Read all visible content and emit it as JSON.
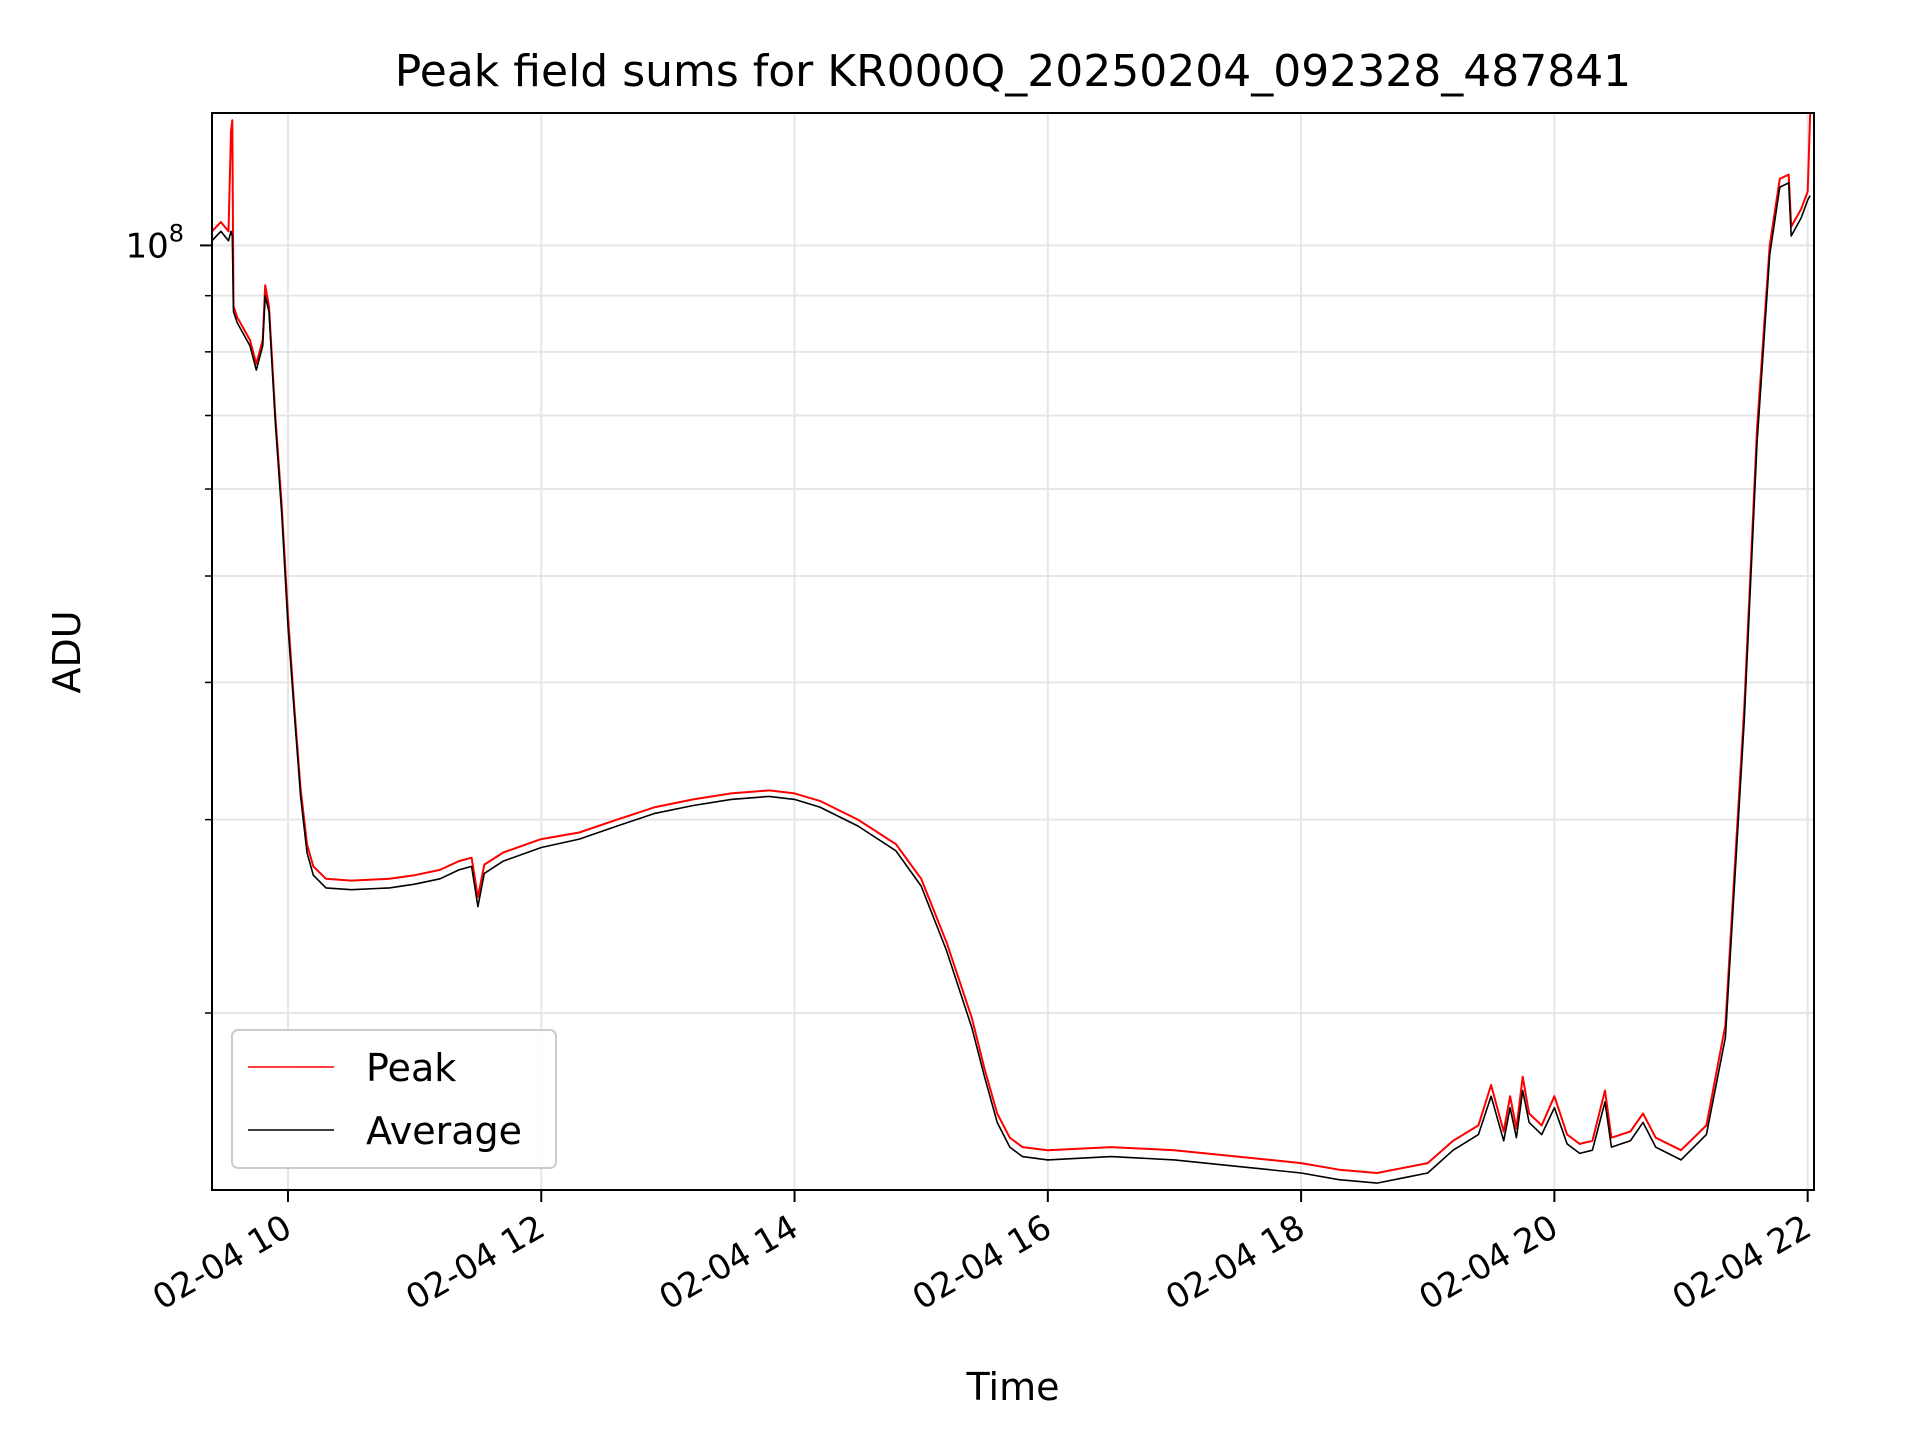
{
  "chart_data": {
    "type": "line",
    "title": "Peak field sums for KR000Q_20250204_092328_487841",
    "xlabel": "Time",
    "ylabel": "ADU",
    "yscale": "log",
    "x_unit": "hours of 2025-02-04",
    "xlim": [
      9.4,
      22.05
    ],
    "ylim": [
      13800000,
      132000000
    ],
    "x_ticks": [
      10,
      12,
      14,
      16,
      18,
      20,
      22
    ],
    "x_tick_labels": [
      "02-04 10",
      "02-04 12",
      "02-04 14",
      "02-04 16",
      "02-04 18",
      "02-04 20",
      "02-04 22"
    ],
    "y_major_ticks": [
      100000000
    ],
    "y_major_tick_base": "10",
    "y_major_tick_exp": "8",
    "y_minor_ticks": [
      20000000,
      30000000,
      40000000,
      50000000,
      60000000,
      70000000,
      80000000,
      90000000
    ],
    "grid": true,
    "legend": "lower-left",
    "series": [
      {
        "name": "Peak",
        "color": "#ff0000",
        "points": [
          [
            9.4,
            103000000
          ],
          [
            9.47,
            105000000
          ],
          [
            9.53,
            103000000
          ],
          [
            9.55,
            127000000
          ],
          [
            9.56,
            130000000
          ],
          [
            9.57,
            88000000
          ],
          [
            9.6,
            86000000
          ],
          [
            9.7,
            82000000
          ],
          [
            9.75,
            78000000
          ],
          [
            9.8,
            82000000
          ],
          [
            9.82,
            92000000
          ],
          [
            9.85,
            88000000
          ],
          [
            9.9,
            70000000
          ],
          [
            9.95,
            58000000
          ],
          [
            10.0,
            46000000
          ],
          [
            10.05,
            38000000
          ],
          [
            10.1,
            32000000
          ],
          [
            10.15,
            28500000
          ],
          [
            10.2,
            27200000
          ],
          [
            10.3,
            26500000
          ],
          [
            10.5,
            26400000
          ],
          [
            10.8,
            26500000
          ],
          [
            11.0,
            26700000
          ],
          [
            11.2,
            27000000
          ],
          [
            11.35,
            27500000
          ],
          [
            11.45,
            27700000
          ],
          [
            11.5,
            25500000
          ],
          [
            11.55,
            27300000
          ],
          [
            11.7,
            28000000
          ],
          [
            12.0,
            28800000
          ],
          [
            12.3,
            29200000
          ],
          [
            12.6,
            30000000
          ],
          [
            12.9,
            30800000
          ],
          [
            13.2,
            31300000
          ],
          [
            13.5,
            31700000
          ],
          [
            13.8,
            31900000
          ],
          [
            14.0,
            31700000
          ],
          [
            14.2,
            31200000
          ],
          [
            14.5,
            30000000
          ],
          [
            14.8,
            28500000
          ],
          [
            15.0,
            26500000
          ],
          [
            15.2,
            23200000
          ],
          [
            15.4,
            19800000
          ],
          [
            15.5,
            17800000
          ],
          [
            15.6,
            16200000
          ],
          [
            15.7,
            15400000
          ],
          [
            15.8,
            15100000
          ],
          [
            16.0,
            15000000
          ],
          [
            16.5,
            15100000
          ],
          [
            17.0,
            15000000
          ],
          [
            17.5,
            14800000
          ],
          [
            18.0,
            14600000
          ],
          [
            18.3,
            14400000
          ],
          [
            18.6,
            14300000
          ],
          [
            19.0,
            14600000
          ],
          [
            19.2,
            15300000
          ],
          [
            19.4,
            15800000
          ],
          [
            19.5,
            17200000
          ],
          [
            19.6,
            15600000
          ],
          [
            19.65,
            16800000
          ],
          [
            19.7,
            15700000
          ],
          [
            19.75,
            17500000
          ],
          [
            19.8,
            16200000
          ],
          [
            19.9,
            15800000
          ],
          [
            20.0,
            16800000
          ],
          [
            20.1,
            15500000
          ],
          [
            20.2,
            15200000
          ],
          [
            20.3,
            15300000
          ],
          [
            20.4,
            17000000
          ],
          [
            20.45,
            15400000
          ],
          [
            20.6,
            15600000
          ],
          [
            20.7,
            16200000
          ],
          [
            20.8,
            15400000
          ],
          [
            21.0,
            15000000
          ],
          [
            21.2,
            15800000
          ],
          [
            21.35,
            19500000
          ],
          [
            21.5,
            38000000
          ],
          [
            21.6,
            68000000
          ],
          [
            21.7,
            100000000
          ],
          [
            21.78,
            115000000
          ],
          [
            21.85,
            116000000
          ],
          [
            21.87,
            104000000
          ],
          [
            21.95,
            108000000
          ],
          [
            22.0,
            112000000
          ],
          [
            22.02,
            132000000
          ]
        ]
      },
      {
        "name": "Average",
        "color": "#000000",
        "points": [
          [
            9.4,
            101000000
          ],
          [
            9.47,
            103000000
          ],
          [
            9.53,
            101000000
          ],
          [
            9.55,
            103000000
          ],
          [
            9.56,
            102000000
          ],
          [
            9.57,
            87000000
          ],
          [
            9.6,
            85000000
          ],
          [
            9.7,
            81000000
          ],
          [
            9.75,
            77000000
          ],
          [
            9.8,
            81000000
          ],
          [
            9.82,
            90000000
          ],
          [
            9.85,
            87000000
          ],
          [
            9.9,
            69000000
          ],
          [
            9.95,
            57000000
          ],
          [
            10.0,
            45000000
          ],
          [
            10.05,
            37500000
          ],
          [
            10.1,
            31500000
          ],
          [
            10.15,
            28000000
          ],
          [
            10.2,
            26700000
          ],
          [
            10.3,
            26000000
          ],
          [
            10.5,
            25900000
          ],
          [
            10.8,
            26000000
          ],
          [
            11.0,
            26200000
          ],
          [
            11.2,
            26500000
          ],
          [
            11.35,
            27000000
          ],
          [
            11.45,
            27200000
          ],
          [
            11.5,
            25000000
          ],
          [
            11.55,
            26800000
          ],
          [
            11.7,
            27500000
          ],
          [
            12.0,
            28300000
          ],
          [
            12.3,
            28800000
          ],
          [
            12.6,
            29600000
          ],
          [
            12.9,
            30400000
          ],
          [
            13.2,
            30900000
          ],
          [
            13.5,
            31300000
          ],
          [
            13.8,
            31500000
          ],
          [
            14.0,
            31300000
          ],
          [
            14.2,
            30800000
          ],
          [
            14.5,
            29600000
          ],
          [
            14.8,
            28100000
          ],
          [
            15.0,
            26100000
          ],
          [
            15.2,
            22800000
          ],
          [
            15.4,
            19400000
          ],
          [
            15.5,
            17500000
          ],
          [
            15.6,
            15900000
          ],
          [
            15.7,
            15100000
          ],
          [
            15.8,
            14800000
          ],
          [
            16.0,
            14700000
          ],
          [
            16.5,
            14800000
          ],
          [
            17.0,
            14700000
          ],
          [
            17.5,
            14500000
          ],
          [
            18.0,
            14300000
          ],
          [
            18.3,
            14100000
          ],
          [
            18.6,
            14000000
          ],
          [
            19.0,
            14300000
          ],
          [
            19.2,
            15000000
          ],
          [
            19.4,
            15500000
          ],
          [
            19.5,
            16800000
          ],
          [
            19.6,
            15300000
          ],
          [
            19.65,
            16400000
          ],
          [
            19.7,
            15400000
          ],
          [
            19.75,
            17000000
          ],
          [
            19.8,
            15900000
          ],
          [
            19.9,
            15500000
          ],
          [
            20.0,
            16400000
          ],
          [
            20.1,
            15200000
          ],
          [
            20.2,
            14900000
          ],
          [
            20.3,
            15000000
          ],
          [
            20.4,
            16600000
          ],
          [
            20.45,
            15100000
          ],
          [
            20.6,
            15300000
          ],
          [
            20.7,
            15900000
          ],
          [
            20.8,
            15100000
          ],
          [
            21.0,
            14700000
          ],
          [
            21.2,
            15500000
          ],
          [
            21.35,
            19000000
          ],
          [
            21.5,
            37000000
          ],
          [
            21.6,
            66000000
          ],
          [
            21.7,
            98000000
          ],
          [
            21.78,
            113000000
          ],
          [
            21.85,
            114000000
          ],
          [
            21.87,
            102000000
          ],
          [
            21.95,
            106000000
          ],
          [
            22.0,
            110000000
          ],
          [
            22.02,
            111000000
          ]
        ]
      }
    ]
  }
}
